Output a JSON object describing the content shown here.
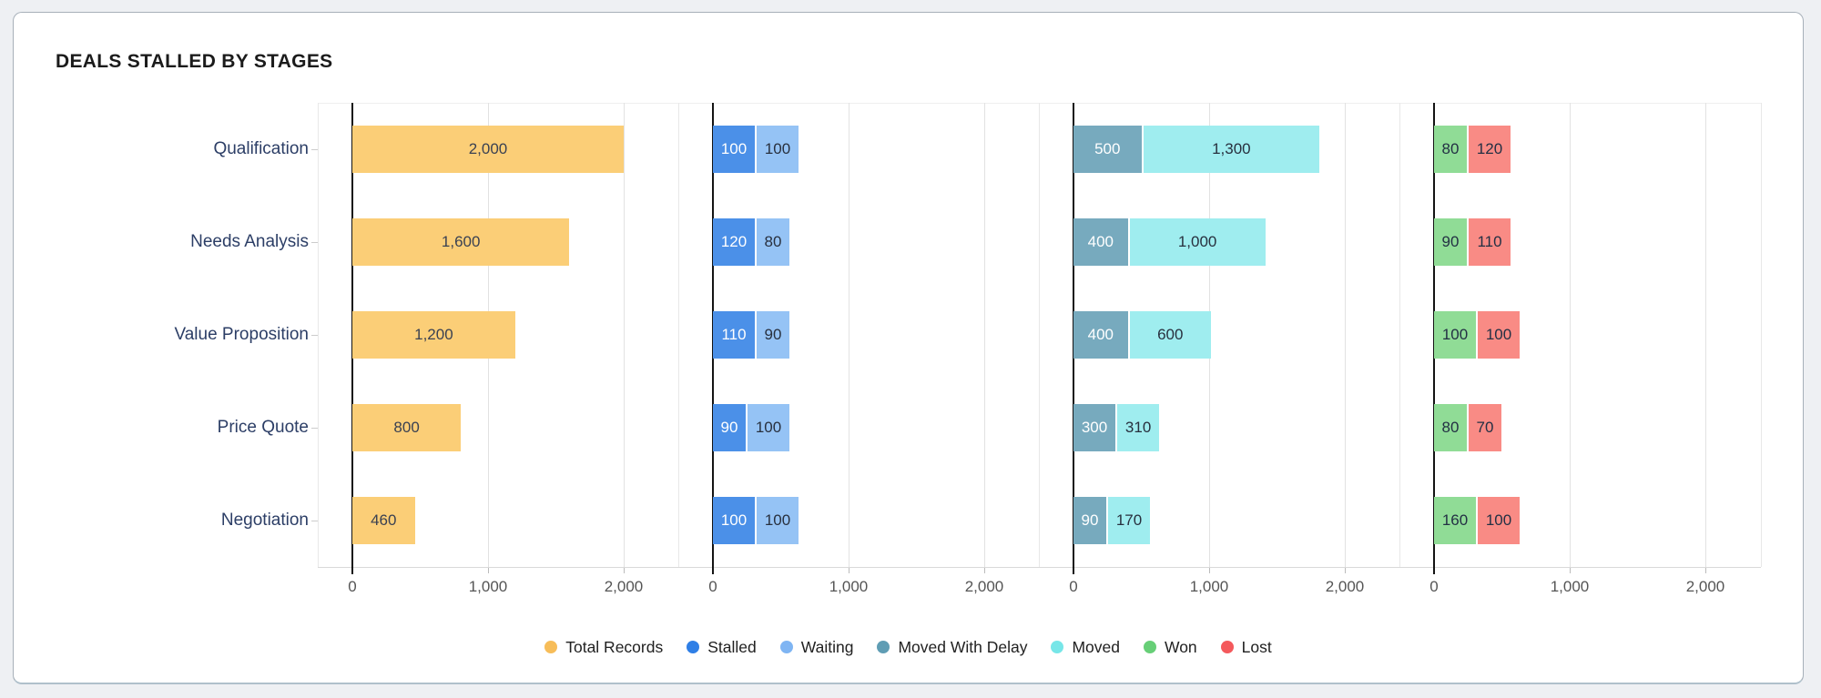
{
  "card": {
    "title": "DEALS STALLED BY STAGES"
  },
  "chart_data": {
    "type": "bar",
    "orientation": "horizontal",
    "title": "DEALS STALLED BY STAGES",
    "categories": [
      "Qualification",
      "Needs Analysis",
      "Value Proposition",
      "Price Quote",
      "Negotiation"
    ],
    "x_axis": {
      "ticks": [
        "0",
        "1,000",
        "2,000"
      ],
      "tick_values": [
        0,
        1000,
        2000
      ],
      "max": 2400,
      "grid": true
    },
    "panels": [
      {
        "series": [
          {
            "name": "Total Records",
            "bar_color": "#FBCE77",
            "text_color": "#3A4152",
            "values": [
              2000,
              1600,
              1200,
              800,
              460
            ],
            "labels": [
              "2,000",
              "1,600",
              "1,200",
              "800",
              "460"
            ]
          }
        ]
      },
      {
        "series": [
          {
            "name": "Stalled",
            "bar_color": "#4B90E8",
            "text_color": "#FFFFFF",
            "values": [
              100,
              120,
              110,
              90,
              100
            ],
            "labels": [
              "100",
              "120",
              "110",
              "90",
              "100"
            ]
          },
          {
            "name": "Waiting",
            "bar_color": "#95C3F5",
            "text_color": "#28303E",
            "values": [
              100,
              80,
              90,
              100,
              100
            ],
            "labels": [
              "100",
              "80",
              "90",
              "100",
              "100"
            ]
          }
        ]
      },
      {
        "series": [
          {
            "name": "Moved With Delay",
            "bar_color": "#77AABE",
            "text_color": "#FFFFFF",
            "values": [
              500,
              400,
              400,
              300,
              90
            ],
            "labels": [
              "500",
              "400",
              "400",
              "300",
              "90"
            ]
          },
          {
            "name": "Moved",
            "bar_color": "#9FEDEF",
            "text_color": "#28303E",
            "values": [
              1300,
              1000,
              600,
              310,
              170
            ],
            "labels": [
              "1,300",
              "1,000",
              "600",
              "310",
              "170"
            ]
          }
        ]
      },
      {
        "series": [
          {
            "name": "Won",
            "bar_color": "#90DC96",
            "text_color": "#233044",
            "values": [
              80,
              90,
              100,
              80,
              160
            ],
            "labels": [
              "80",
              "90",
              "100",
              "80",
              "160"
            ]
          },
          {
            "name": "Lost",
            "bar_color": "#F98B85",
            "text_color": "#233044",
            "values": [
              120,
              110,
              100,
              70,
              100
            ],
            "labels": [
              "120",
              "110",
              "100",
              "70",
              "100"
            ]
          }
        ]
      }
    ],
    "legend": {
      "position": "bottom",
      "items": [
        {
          "label": "Total Records",
          "color": "#F7BD59"
        },
        {
          "label": "Stalled",
          "color": "#2F7FE6"
        },
        {
          "label": "Waiting",
          "color": "#7FB5F3"
        },
        {
          "label": "Moved With Delay",
          "color": "#5F9DB4"
        },
        {
          "label": "Moved",
          "color": "#77E6E8"
        },
        {
          "label": "Won",
          "color": "#67CF77"
        },
        {
          "label": "Lost",
          "color": "#F4595C"
        }
      ]
    }
  }
}
